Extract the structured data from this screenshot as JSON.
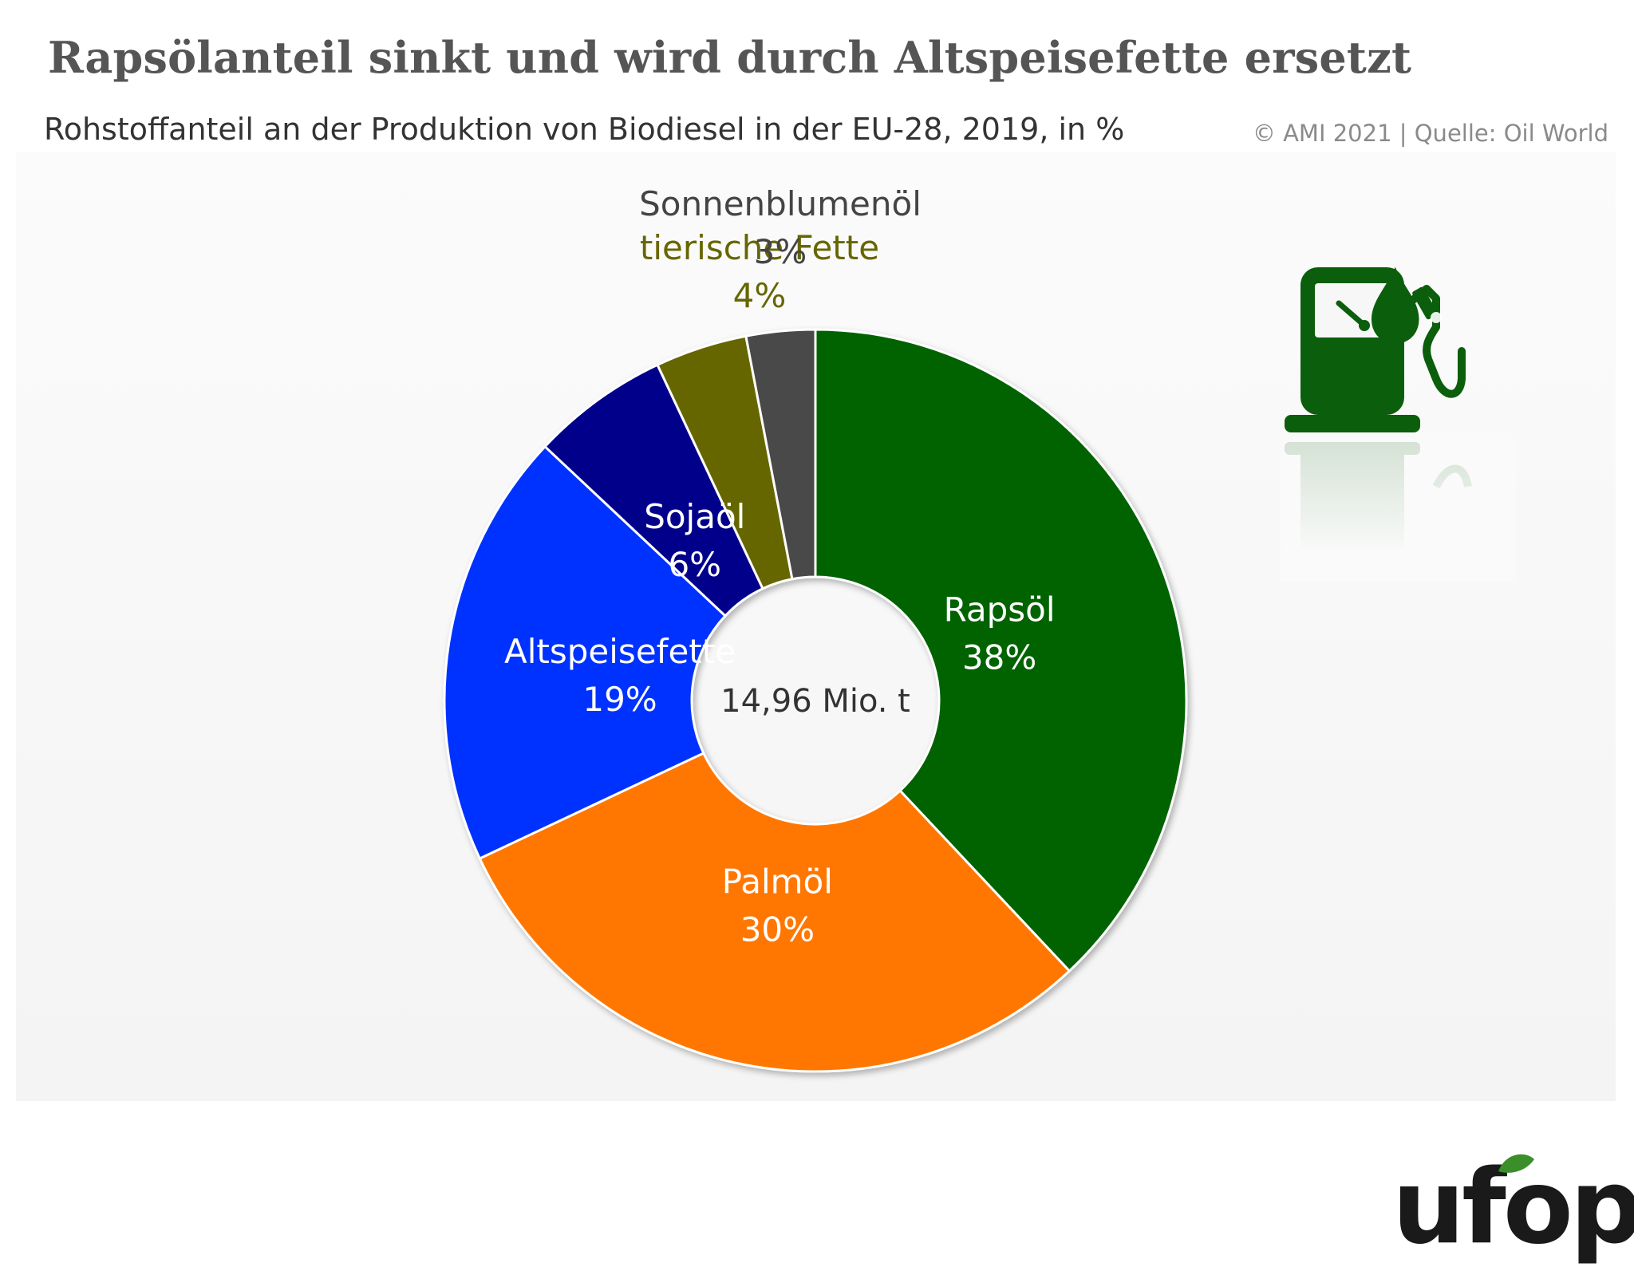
{
  "title": "Rapsölanteil sinkt und wird durch Altspeisefette ersetzt",
  "subtitle": "Rohstoffanteil an der Produktion von Biodiesel in der EU-28, 2019, in %",
  "source": "© AMI 2021 | Quelle: Oil World",
  "logo_text": "ufop",
  "icons": [
    "fuel-pump-icon",
    "oil-drop-icon"
  ],
  "chart_data": {
    "type": "pie",
    "donut": true,
    "center_label": "14,96 Mio. t",
    "slices": [
      {
        "label": "Rapsöl",
        "value": 38,
        "value_label": "38%",
        "color": "#006400",
        "text_color": "#ffffff"
      },
      {
        "label": "Palmöl",
        "value": 30,
        "value_label": "30%",
        "color": "#ff7700",
        "text_color": "#ffffff"
      },
      {
        "label": "Altspeisefette",
        "value": 19,
        "value_label": "19%",
        "color": "#0033ff",
        "text_color": "#ffffff"
      },
      {
        "label": "Sojaöl",
        "value": 6,
        "value_label": "6%",
        "color": "#00008b",
        "text_color": "#ffffff"
      },
      {
        "label": "tierische Fette",
        "value": 4,
        "value_label": "4%",
        "color": "#666600",
        "text_color": "#666600"
      },
      {
        "label": "Sonnenblumenöl",
        "value": 3,
        "value_label": "3%",
        "color": "#4a4a4a",
        "text_color": "#444444"
      }
    ]
  }
}
